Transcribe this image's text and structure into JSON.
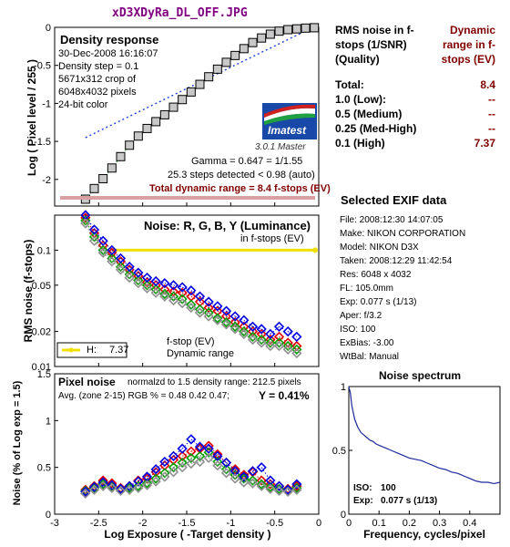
{
  "file_title": "xD3XDyRa_DL_OFF.JPG",
  "summary": {
    "header_left": "RMS noise in f-stops (1/SNR) (Quality)",
    "header_right": "Dynamic range in f-stops (EV)",
    "rows": [
      {
        "label": "Total:",
        "value": "8.4"
      },
      {
        "label": "1.0    (Low):",
        "value": "--"
      },
      {
        "label": "0.5    (Medium)",
        "value": "--"
      },
      {
        "label": "0.25  (Med-High)",
        "value": "--"
      },
      {
        "label": "0.1    (High)",
        "value": "7.37"
      }
    ]
  },
  "exif": {
    "title": "Selected EXIF data",
    "lines": [
      "File:  2008:12:30 14:07:05",
      "Make:  NIKON CORPORATION",
      "Model: NIKON D3X",
      "Taken: 2008:12:29 11:42:54",
      "Res:   6048 x 4032",
      "FL:    105.0mm",
      "Exp:   0.077 s  (1/13)",
      "Aper:  f/3.2",
      "ISO:   100",
      "ExBias: -3.00",
      "WtBal: Manual"
    ]
  },
  "density_panel": {
    "title": "Density response",
    "info": [
      "30-Dec-2008 16:16:07",
      "Density step = 0.1",
      "5671x312 crop of",
      "6048x4032 pixels",
      "24-bit color"
    ],
    "logo_text": "Imatest",
    "version": "3.0.1  Master",
    "gamma": "Gamma = 0.647 = 1/1.55",
    "steps": "25.3 steps detected < 0.98 (auto)",
    "total_dr": "Total dynamic range = 8.4 f-stops (EV)"
  },
  "noise_panel": {
    "title": "Noise: R, G, B, Y (Luminance)",
    "subtitle": "in f-stops (EV)",
    "legend_h": "H:",
    "legend_h_value": "7.37",
    "note_line1": "f-stop (EV)",
    "note_line2": "Dynamic range"
  },
  "pixel_panel": {
    "title": "Pixel noise",
    "norm": "normalzd to 1.5 density range: 212.5 pixels",
    "avg": "Avg. (zone 2-15) RGB % = 0.48  0.42  0.47;",
    "y": "Y = 0.41%"
  },
  "spectrum_panel": {
    "title": "Noise spectrum",
    "iso_label": "ISO:",
    "iso_value": "100",
    "exp_label": "Exp:",
    "exp_value": "0.077 s  (1/13)"
  },
  "chart_data": [
    {
      "id": "density",
      "type": "scatter",
      "ylabel": "Log ( Pixel level / 255 )",
      "xlim": [
        -3,
        0
      ],
      "ylim": [
        -2.35,
        0
      ],
      "yticks": [
        0,
        -0.5,
        -1,
        -1.5,
        -2
      ],
      "ytick_labels": [
        "0",
        "-0.5",
        "-1",
        "-1.5",
        "-2"
      ],
      "x": [
        -2.65,
        -2.55,
        -2.45,
        -2.35,
        -2.25,
        -2.15,
        -2.05,
        -1.95,
        -1.85,
        -1.75,
        -1.65,
        -1.55,
        -1.45,
        -1.35,
        -1.25,
        -1.15,
        -1.05,
        -0.95,
        -0.85,
        -0.75,
        -0.65,
        -0.55,
        -0.45,
        -0.35,
        -0.25,
        -0.15,
        -0.05
      ],
      "y": [
        -2.26,
        -2.12,
        -1.99,
        -1.85,
        -1.7,
        -1.55,
        -1.43,
        -1.33,
        -1.24,
        -1.15,
        -1.05,
        -0.95,
        -0.85,
        -0.75,
        -0.65,
        -0.55,
        -0.46,
        -0.37,
        -0.28,
        -0.2,
        -0.14,
        -0.09,
        -0.05,
        -0.03,
        -0.02,
        -0.01,
        -0.005
      ],
      "fit_line_x": [
        -2.65,
        -0.1
      ],
      "fit_line_y": [
        -1.45,
        -0.02
      ]
    },
    {
      "id": "noise",
      "type": "scatter",
      "ylabel": "RMS noise (f-stops)",
      "xlim": [
        -3,
        0
      ],
      "ylim_log": [
        0.01,
        0.2
      ],
      "yticks": [
        0.1,
        0.05,
        0.02,
        0.01
      ],
      "ytick_labels": [
        "0.1",
        "0.05",
        "0.02",
        "0.01"
      ],
      "x": [
        -2.65,
        -2.55,
        -2.45,
        -2.35,
        -2.25,
        -2.15,
        -2.05,
        -1.95,
        -1.85,
        -1.75,
        -1.65,
        -1.55,
        -1.45,
        -1.35,
        -1.25,
        -1.15,
        -1.05,
        -0.95,
        -0.85,
        -0.75,
        -0.65,
        -0.55,
        -0.45,
        -0.35,
        -0.25
      ],
      "series": [
        {
          "name": "R",
          "color": "#e00000",
          "values": [
            0.19,
            0.14,
            0.11,
            0.095,
            0.08,
            0.068,
            0.06,
            0.053,
            0.05,
            0.046,
            0.044,
            0.043,
            0.04,
            0.036,
            0.032,
            0.03,
            0.027,
            0.024,
            0.022,
            0.02,
            0.019,
            0.017,
            0.018,
            0.016,
            0.015
          ]
        },
        {
          "name": "G",
          "color": "#00a000",
          "values": [
            0.18,
            0.13,
            0.1,
            0.085,
            0.072,
            0.062,
            0.055,
            0.05,
            0.046,
            0.042,
            0.04,
            0.038,
            0.034,
            0.031,
            0.029,
            0.026,
            0.024,
            0.022,
            0.02,
            0.018,
            0.017,
            0.016,
            0.016,
            0.015,
            0.014
          ]
        },
        {
          "name": "B",
          "color": "#0000e0",
          "values": [
            0.2,
            0.15,
            0.12,
            0.1,
            0.085,
            0.072,
            0.064,
            0.058,
            0.054,
            0.052,
            0.05,
            0.048,
            0.045,
            0.04,
            0.036,
            0.033,
            0.03,
            0.027,
            0.025,
            0.022,
            0.021,
            0.019,
            0.022,
            0.02,
            0.018
          ]
        },
        {
          "name": "Y",
          "color": "#909090",
          "values": [
            0.17,
            0.12,
            0.095,
            0.08,
            0.068,
            0.058,
            0.052,
            0.047,
            0.043,
            0.04,
            0.037,
            0.035,
            0.032,
            0.029,
            0.027,
            0.025,
            0.023,
            0.021,
            0.019,
            0.017,
            0.016,
            0.015,
            0.015,
            0.014,
            0.013
          ]
        }
      ],
      "threshold_line": {
        "y": 0.1,
        "x_start": -2.35,
        "x_end": 0,
        "color": "#f0e000"
      }
    },
    {
      "id": "pixel_noise",
      "type": "scatter",
      "xlabel": "Log Exposure ( -Target density )",
      "ylabel": "Noise (% of Log exp = 1.5)",
      "xlim": [
        -3,
        0
      ],
      "ylim": [
        0,
        1.5
      ],
      "xticks": [
        -3,
        -2.5,
        -2,
        -1.5,
        -1,
        -0.5,
        0
      ],
      "xtick_labels": [
        "-3",
        "-2.5",
        "-2",
        "-1.5",
        "-1",
        "-0.5",
        "0"
      ],
      "yticks": [
        0,
        0.5,
        1,
        1.5
      ],
      "ytick_labels": [
        "0",
        "0.5",
        "1",
        "1.5"
      ],
      "x": [
        -2.65,
        -2.55,
        -2.45,
        -2.35,
        -2.25,
        -2.15,
        -2.05,
        -1.95,
        -1.85,
        -1.75,
        -1.65,
        -1.55,
        -1.45,
        -1.35,
        -1.25,
        -1.15,
        -1.05,
        -0.95,
        -0.85,
        -0.75,
        -0.65,
        -0.55,
        -0.45,
        -0.35,
        -0.25
      ],
      "series": [
        {
          "name": "R",
          "color": "#e00000",
          "values": [
            0.26,
            0.3,
            0.36,
            0.33,
            0.28,
            0.3,
            0.36,
            0.38,
            0.45,
            0.52,
            0.58,
            0.62,
            0.67,
            0.7,
            0.73,
            0.64,
            0.55,
            0.48,
            0.42,
            0.45,
            0.36,
            0.32,
            0.3,
            0.27,
            0.3
          ]
        },
        {
          "name": "G",
          "color": "#00a000",
          "values": [
            0.25,
            0.28,
            0.32,
            0.3,
            0.27,
            0.28,
            0.3,
            0.33,
            0.38,
            0.44,
            0.5,
            0.55,
            0.6,
            0.62,
            0.66,
            0.56,
            0.48,
            0.42,
            0.38,
            0.36,
            0.32,
            0.29,
            0.27,
            0.26,
            0.28
          ]
        },
        {
          "name": "B",
          "color": "#0000e0",
          "values": [
            0.24,
            0.29,
            0.34,
            0.31,
            0.27,
            0.3,
            0.35,
            0.4,
            0.48,
            0.56,
            0.62,
            0.7,
            0.8,
            0.72,
            0.7,
            0.62,
            0.55,
            0.46,
            0.4,
            0.46,
            0.5,
            0.36,
            0.3,
            0.26,
            0.32
          ]
        },
        {
          "name": "Y",
          "color": "#909090",
          "values": [
            0.22,
            0.26,
            0.3,
            0.28,
            0.25,
            0.26,
            0.28,
            0.31,
            0.35,
            0.4,
            0.45,
            0.5,
            0.54,
            0.56,
            0.6,
            0.52,
            0.44,
            0.38,
            0.34,
            0.33,
            0.3,
            0.27,
            0.25,
            0.24,
            0.26
          ]
        }
      ]
    },
    {
      "id": "spectrum",
      "type": "line",
      "xlabel": "Frequency, cycles/pixel",
      "xlim": [
        0,
        0.5
      ],
      "ylim": [
        0,
        1
      ],
      "xticks": [
        0,
        0.1,
        0.2,
        0.3,
        0.4
      ],
      "xtick_labels": [
        "0",
        "0.1",
        "0.2",
        "0.3",
        "0.4"
      ],
      "yticks": [
        0,
        0.5,
        1
      ],
      "ytick_labels": [
        "0",
        "0.5",
        "1"
      ],
      "x": [
        0,
        0.005,
        0.01,
        0.02,
        0.03,
        0.04,
        0.05,
        0.06,
        0.07,
        0.08,
        0.09,
        0.1,
        0.12,
        0.14,
        0.16,
        0.18,
        0.2,
        0.22,
        0.24,
        0.26,
        0.28,
        0.3,
        0.32,
        0.34,
        0.36,
        0.38,
        0.4,
        0.42,
        0.44,
        0.46,
        0.48,
        0.5
      ],
      "y": [
        1.0,
        0.95,
        0.85,
        0.74,
        0.68,
        0.64,
        0.62,
        0.6,
        0.58,
        0.57,
        0.55,
        0.54,
        0.52,
        0.5,
        0.48,
        0.46,
        0.44,
        0.43,
        0.42,
        0.4,
        0.38,
        0.36,
        0.35,
        0.33,
        0.32,
        0.3,
        0.28,
        0.26,
        0.25,
        0.25,
        0.24,
        0.25
      ]
    }
  ]
}
